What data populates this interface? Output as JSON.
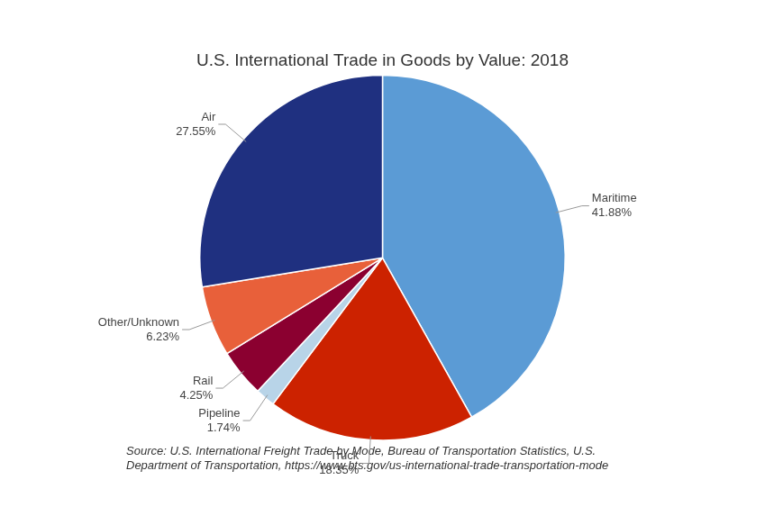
{
  "chart_data": {
    "type": "pie",
    "title": "U.S. International Trade in Goods by Value: 2018",
    "source": "Source: U.S. International Freight Trade by Mode, Bureau of Transportation Statistics, U.S.\nDepartment of Transportation, https://www.bts.gov/us-international-trade-transportation-mode",
    "categories": [
      "Maritime",
      "Truck",
      "Pipeline",
      "Rail",
      "Other/Unknown",
      "Air"
    ],
    "values": [
      41.88,
      18.35,
      1.74,
      4.25,
      6.23,
      27.55
    ],
    "value_labels": [
      "41.88%",
      "18.35%",
      "1.74%",
      "4.25%",
      "6.23%",
      "27.55%"
    ],
    "colors": [
      "#5b9bd5",
      "#cc2200",
      "#b8d4e8",
      "#8b0030",
      "#e8603a",
      "#1f3080"
    ],
    "data_labels": true,
    "legend": false
  }
}
